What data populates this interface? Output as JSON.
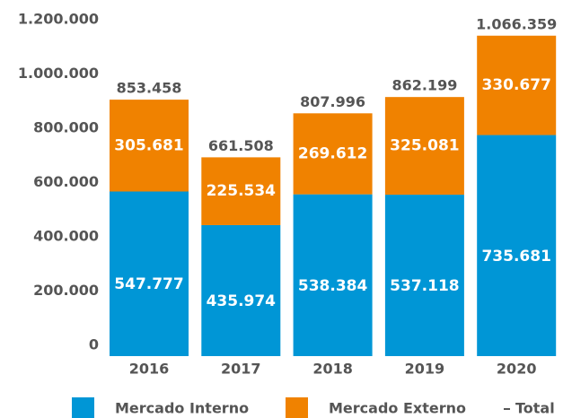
{
  "chart_data": {
    "type": "stacked_bar",
    "categories": [
      "2016",
      "2017",
      "2018",
      "2019",
      "2020"
    ],
    "series": [
      {
        "name": "Mercado Interno",
        "color": "#0096d6",
        "values": [
          547777,
          435974,
          538384,
          537118,
          735681
        ],
        "value_labels": [
          "547.777",
          "435.974",
          "538.384",
          "537.118",
          "735.681"
        ]
      },
      {
        "name": "Mercado Externo",
        "color": "#f08200",
        "values": [
          305681,
          225534,
          269612,
          325081,
          330677
        ],
        "value_labels": [
          "305.681",
          "225.534",
          "269.612",
          "325.081",
          "330.677"
        ]
      }
    ],
    "totals": {
      "name": "Total",
      "values": [
        853458,
        661508,
        807996,
        862199,
        1066359
      ],
      "value_labels": [
        "853.458",
        "661.508",
        "807.996",
        "862.199",
        "1.066.359"
      ]
    },
    "ylim": [
      0,
      1200000
    ],
    "yticks": [
      0,
      {
        "value": 200000,
        "label": "200.000"
      },
      {
        "value": 400000,
        "label": "400.000"
      },
      {
        "value": 600000,
        "label": "600.000"
      },
      {
        "value": 800000,
        "label": "800.000"
      },
      {
        "value": 1000000,
        "label": "1.000.000"
      },
      {
        "value": 1200000,
        "label": "1.200.000"
      }
    ],
    "grid": false,
    "legend": "bottom"
  }
}
